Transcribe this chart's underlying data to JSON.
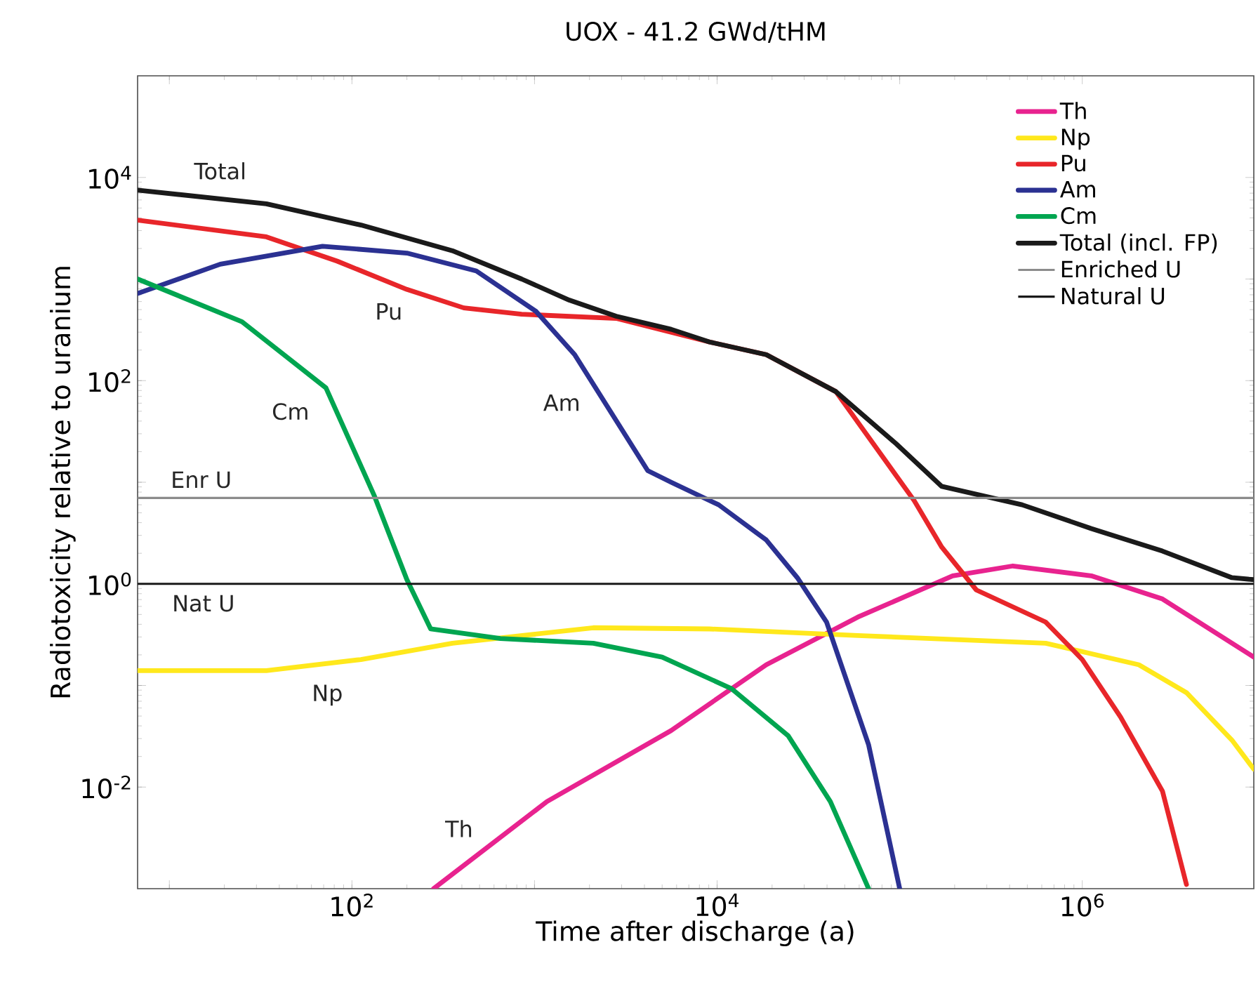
{
  "chart_data": {
    "type": "line",
    "title": "UOX - 41.2 GWd/tHM",
    "xlabel": "Time after discharge (a)",
    "ylabel": "Radiotoxicity relative to uranium",
    "log": "xy",
    "legend": "top right",
    "xlim": [
      6.7,
      8700000
    ],
    "ylim": [
      0.001,
      100000
    ],
    "xticks": [
      {
        "value": 10,
        "label": null
      },
      {
        "value": 100,
        "label": "10$^{2}$"
      },
      {
        "value": 1000,
        "label": null
      },
      {
        "value": 10000,
        "label": "10$^{4}$"
      },
      {
        "value": 100000,
        "label": null
      },
      {
        "value": 1000000,
        "label": "10$^{6}$"
      }
    ],
    "yticks": [
      {
        "value": 0.01,
        "label": "10$^{-2}$"
      },
      {
        "value": 0.1,
        "label": null
      },
      {
        "value": 1,
        "label": "10$^{0}$"
      },
      {
        "value": 10,
        "label": null
      },
      {
        "value": 100,
        "label": "10$^{2}$"
      },
      {
        "value": 1000,
        "label": null
      },
      {
        "value": 10000,
        "label": "10$^{4}$"
      }
    ],
    "series": [
      {
        "name": "Th",
        "color": "#e8238f",
        "x": [
          280,
          1170,
          5600,
          18600,
          58900,
          195000,
          417000,
          1120000,
          2750000,
          8700000
        ],
        "values": [
          0.001,
          0.0072,
          0.036,
          0.16,
          0.47,
          1.2,
          1.5,
          1.2,
          0.71,
          0.19
        ]
      },
      {
        "name": "Np",
        "color": "#ffe81c",
        "x": [
          6.7,
          34,
          112,
          355,
          2100,
          9100,
          58900,
          631000,
          2040000,
          3720000,
          6600000,
          8700000
        ],
        "values": [
          0.14,
          0.14,
          0.18,
          0.26,
          0.37,
          0.36,
          0.31,
          0.26,
          0.16,
          0.085,
          0.029,
          0.015
        ]
      },
      {
        "name": "Pu",
        "color": "#e8262a",
        "x": [
          6.7,
          34,
          83,
          200,
          410,
          850,
          2800,
          9100,
          18600,
          44700,
          120000,
          170000,
          263000,
          631000,
          1000000,
          1620000,
          2750000,
          3720000
        ],
        "values": [
          3800,
          2600,
          1500,
          790,
          520,
          450,
          410,
          240,
          180,
          78,
          6.6,
          2.3,
          0.87,
          0.42,
          0.18,
          0.049,
          0.0091,
          0.0011
        ]
      },
      {
        "name": "Am",
        "color": "#2b3192",
        "x": [
          6.7,
          19,
          69,
          200,
          480,
          1020,
          1660,
          4170,
          5600,
          10200,
          18600,
          27500,
          39800,
          67600,
          100000
        ],
        "values": [
          720,
          1400,
          2100,
          1800,
          1200,
          480,
          180,
          13,
          10,
          6.0,
          2.7,
          1.15,
          0.42,
          0.026,
          0.001
        ]
      },
      {
        "name": "Cm",
        "color": "#00a550",
        "x": [
          6.7,
          25,
          72,
          132,
          200,
          270,
          650,
          2100,
          5000,
          12000,
          24500,
          41700,
          67600
        ],
        "values": [
          1000,
          380,
          85,
          7.5,
          1.1,
          0.36,
          0.29,
          0.26,
          0.19,
          0.093,
          0.032,
          0.0072,
          0.001
        ]
      },
      {
        "name": "Total (incl. FP)",
        "color": "#1a1a1a",
        "x": [
          6.7,
          34,
          112,
          355,
          850,
          1550,
          2800,
          5600,
          9100,
          18600,
          44700,
          95500,
          170000,
          468000,
          1120000,
          2750000,
          6600000,
          8700000
        ],
        "values": [
          7500,
          5500,
          3400,
          1900,
          1000,
          620,
          430,
          320,
          240,
          180,
          78,
          24,
          9.1,
          6.0,
          3.5,
          2.1,
          1.15,
          1.1
        ]
      }
    ],
    "ref_lines": [
      {
        "axis": "y",
        "value": 7,
        "label": "Enriched U",
        "color": "#8c8c8c"
      },
      {
        "axis": "y",
        "value": 1,
        "label": "Natural U",
        "color": "#1a1a1a"
      }
    ],
    "annotations": [
      "Total",
      "Pu",
      "Am",
      "Cm",
      "Enr U",
      "Nat U",
      "Np",
      "Th"
    ]
  }
}
